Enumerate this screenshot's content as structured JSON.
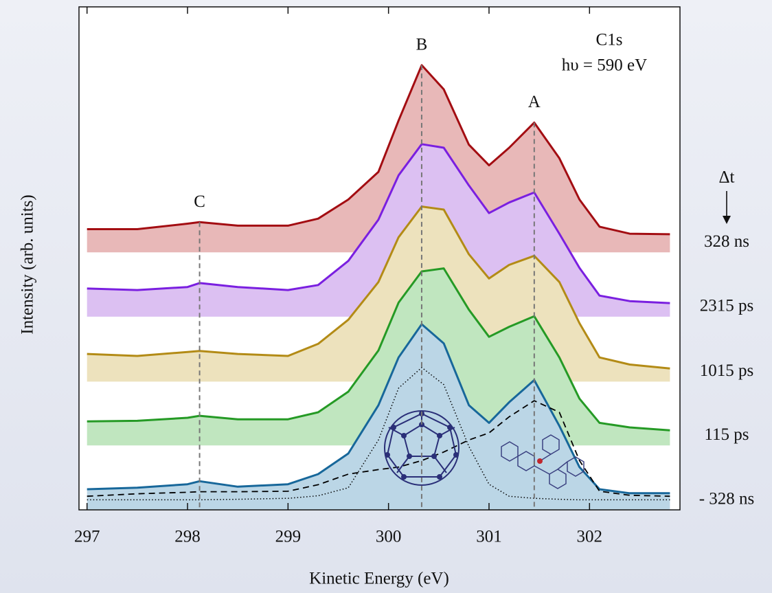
{
  "chart_data": {
    "type": "line",
    "x_label": "Kinetic Energy (eV)",
    "y_label": "Intensity  (arb. units)",
    "annotations": [
      "C1s",
      "hυ = 590 eV"
    ],
    "delta_label": "Δt",
    "xlim": [
      296.92,
      302.9
    ],
    "xticks": [
      297,
      298,
      299,
      300,
      301,
      302
    ],
    "ylim": [
      0,
      100
    ],
    "x": [
      297,
      297.5,
      298,
      298.12,
      298.5,
      299,
      299.3,
      299.6,
      299.9,
      300.1,
      300.33,
      300.55,
      300.8,
      301.0,
      301.2,
      301.45,
      301.7,
      301.9,
      302.1,
      302.4,
      302.8
    ],
    "series": [
      {
        "name": "328 ns",
        "color": "#a30d12",
        "fill": "#e8b8b8",
        "offset": 51.2,
        "values": [
          4.6,
          4.6,
          5.7,
          6.0,
          5.3,
          5.3,
          6.7,
          10.5,
          16.0,
          26.2,
          37.2,
          32.4,
          21.4,
          17.3,
          20.8,
          25.8,
          18.7,
          10.5,
          5.1,
          3.7,
          3.6
        ]
      },
      {
        "name": "2315 ps",
        "color": "#7a1fe0",
        "fill": "#dcc0f2",
        "offset": 38.4,
        "values": [
          5.6,
          5.3,
          5.9,
          6.7,
          5.9,
          5.3,
          6.3,
          11.1,
          19.3,
          28.1,
          34.3,
          33.6,
          26.1,
          20.6,
          22.7,
          24.7,
          16.5,
          9.7,
          4.2,
          3.1,
          2.7
        ]
      },
      {
        "name": "1015 ps",
        "color": "#b38b16",
        "fill": "#ede2bd",
        "offset": 25.5,
        "values": [
          5.5,
          5.1,
          5.9,
          6.1,
          5.5,
          5.1,
          7.5,
          12.3,
          19.8,
          28.7,
          34.8,
          34.2,
          25.3,
          20.5,
          23.2,
          25.0,
          19.8,
          11.6,
          4.8,
          3.4,
          2.6
        ]
      },
      {
        "name": "115 ps",
        "color": "#259a25",
        "fill": "#c0e6bf",
        "offset": 12.8,
        "values": [
          4.8,
          4.9,
          5.5,
          5.9,
          5.2,
          5.2,
          6.6,
          10.7,
          18.9,
          28.4,
          34.6,
          35.2,
          27.0,
          21.6,
          23.6,
          25.7,
          17.5,
          9.3,
          4.5,
          3.6,
          3.0
        ]
      },
      {
        "name": "- 328 ns",
        "color": "#17679a",
        "fill": "#bbd6e6",
        "offset": 0,
        "values": [
          4.1,
          4.4,
          5.1,
          5.7,
          4.6,
          5.1,
          7.1,
          11.2,
          20.8,
          30.3,
          36.9,
          33.1,
          20.8,
          17.3,
          21.4,
          25.8,
          16.7,
          8.5,
          4.1,
          3.3,
          3.3
        ]
      }
    ],
    "fits": [
      {
        "style": "dashed",
        "color": "#000000",
        "values": [
          2.7,
          3.2,
          3.5,
          3.6,
          3.6,
          3.7,
          5.0,
          7.1,
          8.0,
          8.5,
          9.8,
          11.5,
          13.9,
          15.3,
          18.5,
          21.7,
          19.4,
          9.8,
          3.7,
          2.9,
          2.7
        ]
      },
      {
        "style": "dotted",
        "color": "#000000",
        "values": [
          2.0,
          2.0,
          2.0,
          2.0,
          2.1,
          2.3,
          2.8,
          4.4,
          13.9,
          24.2,
          28.3,
          24.9,
          12.6,
          5.1,
          2.7,
          2.3,
          2.1,
          2.0,
          2.0,
          2.0,
          2.0
        ]
      }
    ],
    "peaks": [
      {
        "label": "C",
        "x": 298.12
      },
      {
        "label": "B",
        "x": 300.33
      },
      {
        "label": "A",
        "x": 301.45
      }
    ]
  }
}
